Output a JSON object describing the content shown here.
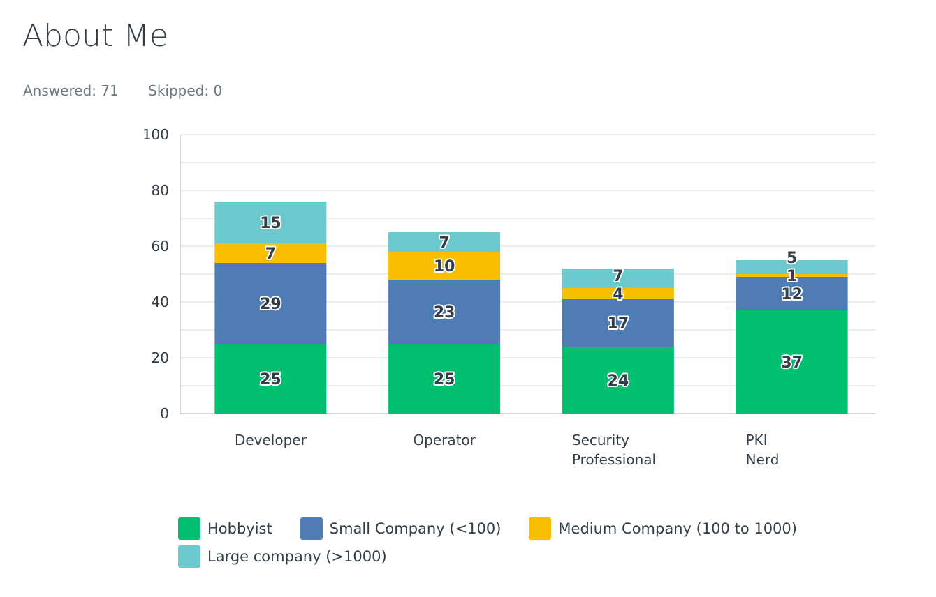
{
  "title": "About Me",
  "answered": "Answered: 71",
  "skipped": "Skipped: 0",
  "chart_data": {
    "type": "bar",
    "stacked": true,
    "categories": [
      "Developer",
      "Operator",
      "Security Professional",
      "PKI Nerd"
    ],
    "series": [
      {
        "name": "Hobbyist",
        "color": "#00bf6f",
        "values": [
          25,
          25,
          24,
          37
        ]
      },
      {
        "name": "Small Company (<100)",
        "color": "#507cb6",
        "values": [
          29,
          23,
          17,
          12
        ]
      },
      {
        "name": "Medium Company (100 to 1000)",
        "color": "#f9be00",
        "values": [
          7,
          10,
          4,
          1
        ]
      },
      {
        "name": "Large company (>1000)",
        "color": "#6bc8cd",
        "values": [
          15,
          7,
          7,
          5
        ]
      }
    ],
    "ylim": [
      0,
      100
    ],
    "yticks": [
      0,
      20,
      40,
      60,
      80,
      100
    ],
    "grid": true,
    "legend": "bottom"
  }
}
